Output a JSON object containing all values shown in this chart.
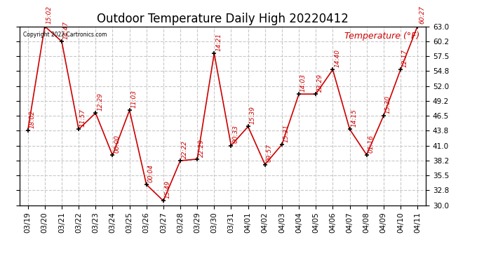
{
  "title": "Outdoor Temperature Daily High 20220412",
  "ylabel": "Temperature (°F)",
  "copyright_text": "Copyright 2022 Cartronics.com",
  "dates": [
    "03/19",
    "03/20",
    "03/21",
    "03/22",
    "03/23",
    "03/24",
    "03/25",
    "03/26",
    "03/27",
    "03/28",
    "03/29",
    "03/30",
    "03/31",
    "04/01",
    "04/02",
    "04/03",
    "04/04",
    "04/05",
    "04/06",
    "04/07",
    "04/08",
    "04/09",
    "04/10",
    "04/11"
  ],
  "temps": [
    43.8,
    63.0,
    60.2,
    44.0,
    47.0,
    39.2,
    47.5,
    33.8,
    30.8,
    38.2,
    38.5,
    58.0,
    41.0,
    44.5,
    37.5,
    41.2,
    50.5,
    50.5,
    55.0,
    44.0,
    39.3,
    46.5,
    55.0,
    63.0
  ],
  "time_labels": [
    "18:02",
    "15:02",
    "14:47",
    "11:57",
    "12:29",
    "00:00",
    "11:03",
    "00:04",
    "15:49",
    "22:22",
    "22:29",
    "14:21",
    "00:33",
    "15:39",
    "09:57",
    "15:31",
    "14:03",
    "23:29",
    "14:40",
    "14:15",
    "01:16",
    "15:30",
    "12:17",
    "60:27"
  ],
  "ylim_min": 30.0,
  "ylim_max": 63.0,
  "yticks": [
    30.0,
    32.8,
    35.5,
    38.2,
    41.0,
    43.8,
    46.5,
    49.2,
    52.0,
    54.8,
    57.5,
    60.2,
    63.0
  ],
  "line_color": "#cc0000",
  "marker_color": "#000000",
  "bg_color": "#ffffff",
  "grid_color": "#c8c8c8",
  "title_fontsize": 12,
  "annot_fontsize": 6.5,
  "tick_fontsize": 7.5,
  "ylabel_fontsize": 9
}
